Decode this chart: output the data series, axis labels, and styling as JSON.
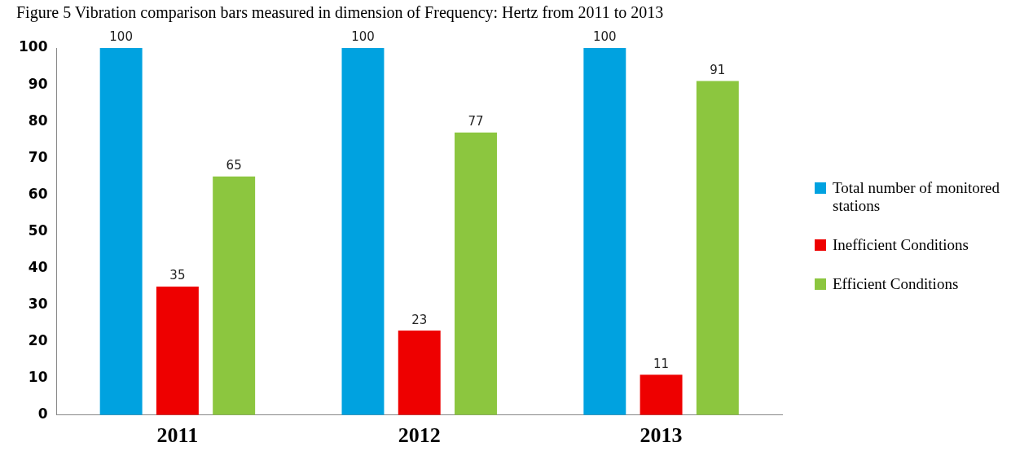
{
  "chart_data": {
    "type": "bar",
    "title": "Figure 5 Vibration comparison bars measured in dimension of Frequency: Hertz from 2011 to 2013",
    "categories": [
      "2011",
      "2012",
      "2013"
    ],
    "series": [
      {
        "name": "Total number of monitored stations",
        "color": "#00a2e0",
        "values": [
          100,
          100,
          100
        ]
      },
      {
        "name": "Inefficient Conditions",
        "color": "#ee0000",
        "values": [
          35,
          23,
          11
        ]
      },
      {
        "name": "Efficient Conditions",
        "color": "#8cc63f",
        "values": [
          65,
          77,
          91
        ]
      }
    ],
    "ylim": [
      0,
      100
    ],
    "yticks": [
      0,
      10,
      20,
      30,
      40,
      50,
      60,
      70,
      80,
      90,
      100
    ],
    "grid": false,
    "legend": "right",
    "data_labels": true
  }
}
